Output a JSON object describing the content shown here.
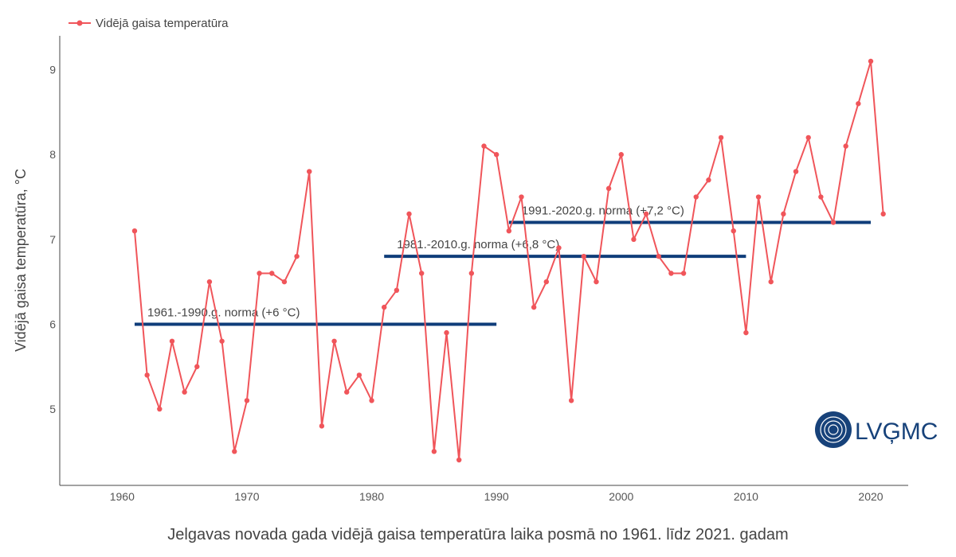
{
  "chart_data": {
    "type": "line",
    "title": "Jelgavas novada gada vidējā gaisa temperatūra laika posmā no 1961. līdz 2021. gadam",
    "ylabel": "Vidējā gaisa temperatūra, °C",
    "xlabel": "",
    "xlim": [
      1955,
      2023
    ],
    "ylim": [
      4.1,
      9.4
    ],
    "x_ticks": [
      1960,
      1970,
      1980,
      1990,
      2000,
      2010,
      2020
    ],
    "y_ticks": [
      5,
      6,
      7,
      8,
      9
    ],
    "grid": false,
    "legend_position": "top-left",
    "series": [
      {
        "name": "Vidējā gaisa temperatūra",
        "color": "#f0555a",
        "x": [
          1961,
          1962,
          1963,
          1964,
          1965,
          1966,
          1967,
          1968,
          1969,
          1970,
          1971,
          1972,
          1973,
          1974,
          1975,
          1976,
          1977,
          1978,
          1979,
          1980,
          1981,
          1982,
          1983,
          1984,
          1985,
          1986,
          1987,
          1988,
          1989,
          1990,
          1991,
          1992,
          1993,
          1994,
          1995,
          1996,
          1997,
          1998,
          1999,
          2000,
          2001,
          2002,
          2003,
          2004,
          2005,
          2006,
          2007,
          2008,
          2009,
          2010,
          2011,
          2012,
          2013,
          2014,
          2015,
          2016,
          2017,
          2018,
          2019,
          2020,
          2021
        ],
        "values": [
          7.1,
          5.4,
          5.0,
          5.8,
          5.2,
          5.5,
          6.5,
          5.8,
          4.5,
          5.1,
          6.6,
          6.6,
          6.5,
          6.8,
          7.8,
          4.8,
          5.8,
          5.2,
          5.4,
          5.1,
          6.2,
          6.4,
          7.3,
          6.6,
          4.5,
          5.9,
          4.4,
          6.6,
          8.1,
          8.0,
          7.1,
          7.5,
          6.2,
          6.5,
          6.9,
          5.1,
          6.8,
          6.5,
          7.6,
          8.0,
          7.0,
          7.3,
          6.8,
          6.6,
          6.6,
          7.5,
          7.7,
          8.2,
          7.1,
          5.9,
          7.5,
          6.5,
          7.3,
          7.8,
          8.2,
          7.5,
          7.2,
          8.1,
          8.6,
          9.1,
          7.3
        ]
      }
    ],
    "norms": [
      {
        "label": "1961.-1990.g. norma (+6 °C)",
        "x_start": 1961,
        "x_end": 1990,
        "value": 6.0,
        "color": "#0f3d7a"
      },
      {
        "label": "1981.-2010.g. norma (+6,8 °C)",
        "x_start": 1981,
        "x_end": 2010,
        "value": 6.8,
        "color": "#0f3d7a"
      },
      {
        "label": "1991.-2020.g. norma (+7,2 °C)",
        "x_start": 1991,
        "x_end": 2020,
        "value": 7.2,
        "color": "#0f3d7a"
      }
    ]
  },
  "logo": {
    "text": "LVĢMC",
    "color": "#17427a"
  }
}
